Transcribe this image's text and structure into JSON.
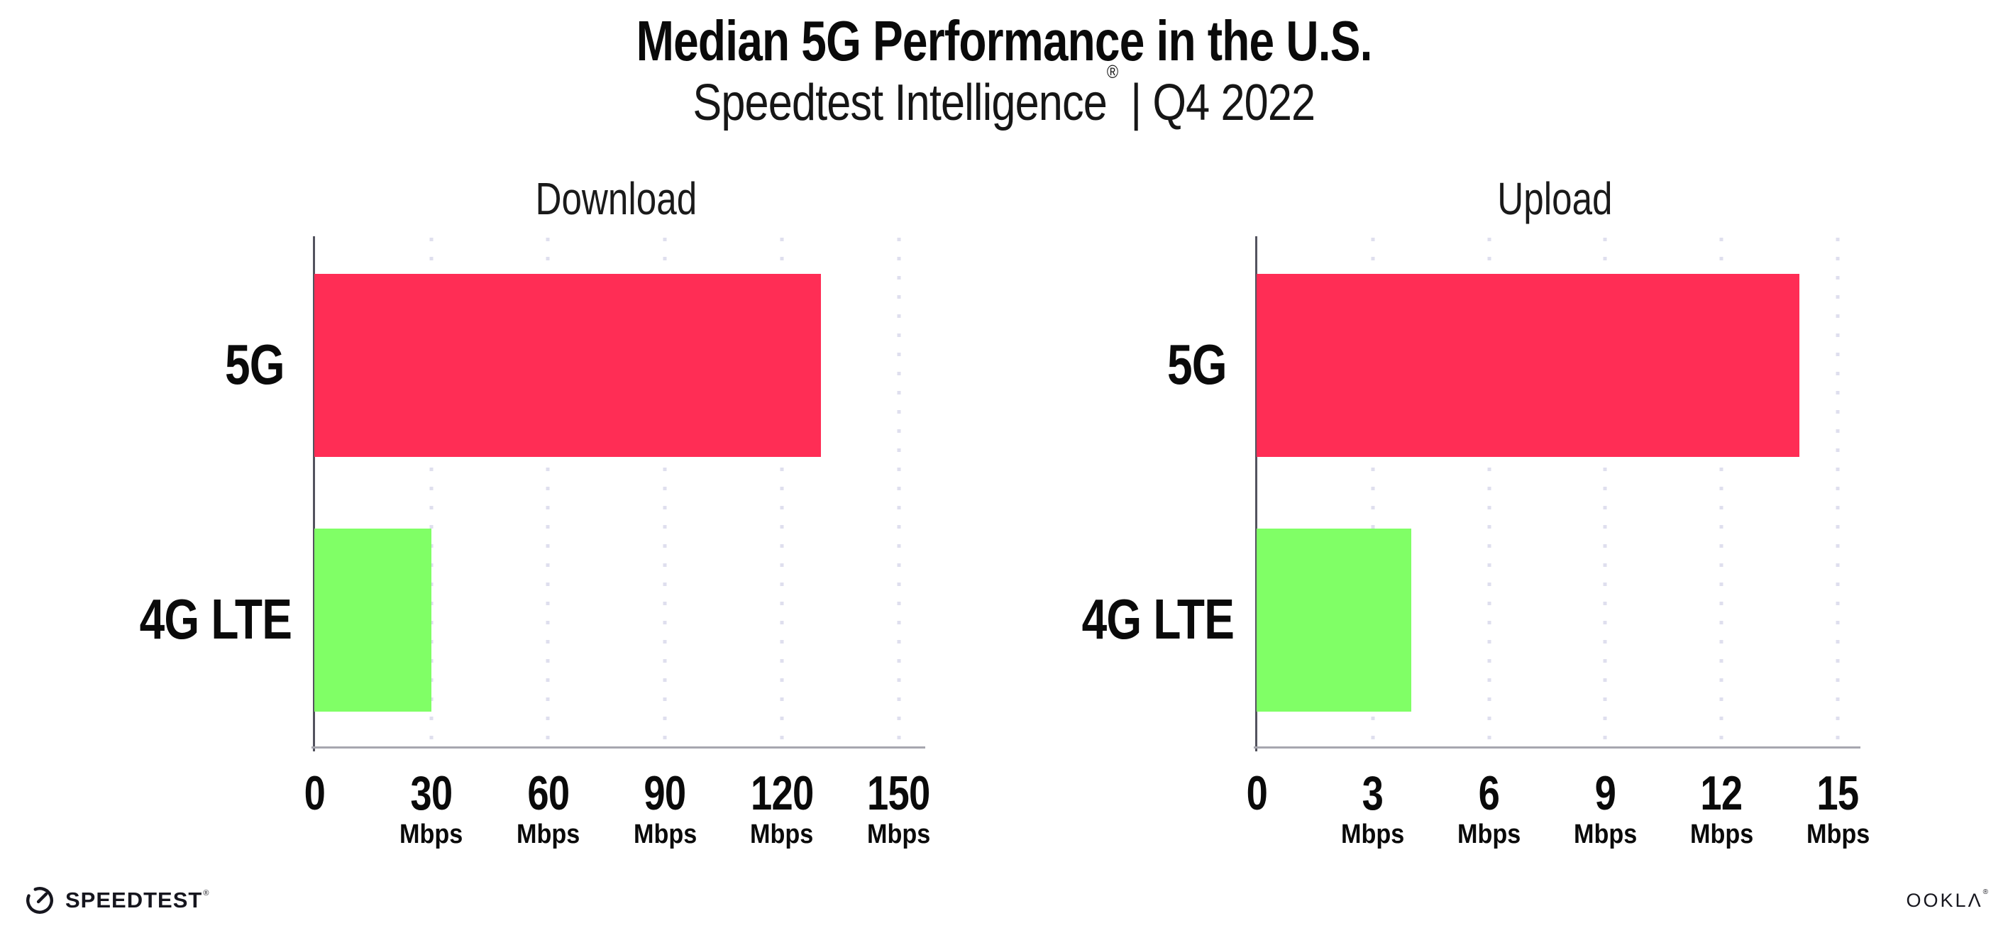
{
  "header": {
    "title": "Median 5G Performance in the U.S.",
    "subtitle_main": "Speedtest Intelligence",
    "subtitle_reg": "®",
    "subtitle_rest": "| Q4 2022"
  },
  "chart_data": [
    {
      "type": "bar",
      "orientation": "horizontal",
      "title": "Download",
      "categories": [
        "5G",
        "4G LTE"
      ],
      "values": [
        130,
        30
      ],
      "unit": "Mbps",
      "bar_colors": [
        "#FF2D55",
        "#80FF66"
      ],
      "xticks": [
        0,
        30,
        60,
        90,
        120,
        150
      ],
      "xlim": [
        0,
        155
      ],
      "grid": "dotted-vertical",
      "legend": "none"
    },
    {
      "type": "bar",
      "orientation": "horizontal",
      "title": "Upload",
      "categories": [
        "5G",
        "4G LTE"
      ],
      "values": [
        14,
        4
      ],
      "unit": "Mbps",
      "bar_colors": [
        "#FF2D55",
        "#80FF66"
      ],
      "xticks": [
        0,
        3,
        6,
        9,
        12,
        15
      ],
      "xlim": [
        0,
        15.4
      ],
      "grid": "dotted-vertical",
      "legend": "none"
    }
  ],
  "footer": {
    "speedtest_logo_text": "SPEEDTEST",
    "speedtest_reg": "®",
    "ookla_logo_text": "OOKLΛ",
    "ookla_reg": "®"
  }
}
